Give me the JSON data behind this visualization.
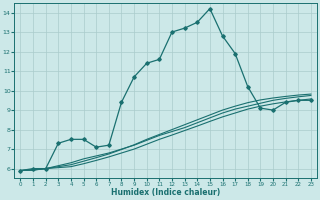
{
  "xlabel": "Humidex (Indice chaleur)",
  "ylabel": "",
  "bg_color": "#cce8e8",
  "line_color": "#1a7070",
  "xlim": [
    -0.5,
    23.5
  ],
  "ylim": [
    5.5,
    14.5
  ],
  "xticks": [
    0,
    1,
    2,
    3,
    4,
    5,
    6,
    7,
    8,
    9,
    10,
    11,
    12,
    13,
    14,
    15,
    16,
    17,
    18,
    19,
    20,
    21,
    22,
    23
  ],
  "yticks": [
    6,
    7,
    8,
    9,
    10,
    11,
    12,
    13,
    14
  ],
  "grid_color": "#aacccc",
  "lines": [
    {
      "x": [
        0,
        1,
        2,
        3,
        4,
        5,
        6,
        7,
        8,
        9,
        10,
        11,
        12,
        13,
        14,
        15,
        16,
        17,
        18,
        19,
        20,
        21,
        22,
        23
      ],
      "y": [
        5.9,
        6.0,
        6.0,
        7.3,
        7.5,
        7.5,
        7.1,
        7.2,
        9.4,
        10.7,
        11.4,
        11.6,
        13.0,
        13.2,
        13.5,
        14.2,
        12.8,
        11.9,
        10.2,
        9.1,
        9.0,
        9.4,
        9.5,
        9.5
      ],
      "marker": "D",
      "markersize": 1.8,
      "linewidth": 0.9
    },
    {
      "x": [
        0,
        1,
        2,
        3,
        4,
        5,
        6,
        7,
        8,
        9,
        10,
        11,
        12,
        13,
        14,
        15,
        16,
        17,
        18,
        19,
        20,
        21,
        22,
        23
      ],
      "y": [
        5.9,
        5.95,
        6.0,
        6.15,
        6.3,
        6.5,
        6.65,
        6.8,
        7.0,
        7.2,
        7.45,
        7.7,
        7.9,
        8.1,
        8.35,
        8.6,
        8.85,
        9.05,
        9.2,
        9.35,
        9.5,
        9.6,
        9.68,
        9.75
      ],
      "marker": null,
      "markersize": 0,
      "linewidth": 0.8
    },
    {
      "x": [
        0,
        1,
        2,
        3,
        4,
        5,
        6,
        7,
        8,
        9,
        10,
        11,
        12,
        13,
        14,
        15,
        16,
        17,
        18,
        19,
        20,
        21,
        22,
        23
      ],
      "y": [
        5.9,
        5.93,
        6.0,
        6.1,
        6.2,
        6.38,
        6.56,
        6.75,
        6.98,
        7.22,
        7.5,
        7.75,
        8.0,
        8.25,
        8.5,
        8.75,
        9.0,
        9.2,
        9.38,
        9.52,
        9.62,
        9.7,
        9.77,
        9.82
      ],
      "marker": null,
      "markersize": 0,
      "linewidth": 0.8
    },
    {
      "x": [
        0,
        1,
        2,
        3,
        4,
        5,
        6,
        7,
        8,
        9,
        10,
        11,
        12,
        13,
        14,
        15,
        16,
        17,
        18,
        19,
        20,
        21,
        22,
        23
      ],
      "y": [
        5.9,
        5.92,
        6.0,
        6.05,
        6.1,
        6.25,
        6.42,
        6.6,
        6.8,
        7.0,
        7.25,
        7.5,
        7.72,
        7.95,
        8.18,
        8.42,
        8.65,
        8.85,
        9.05,
        9.2,
        9.32,
        9.42,
        9.5,
        9.57
      ],
      "marker": null,
      "markersize": 0,
      "linewidth": 0.8
    }
  ]
}
